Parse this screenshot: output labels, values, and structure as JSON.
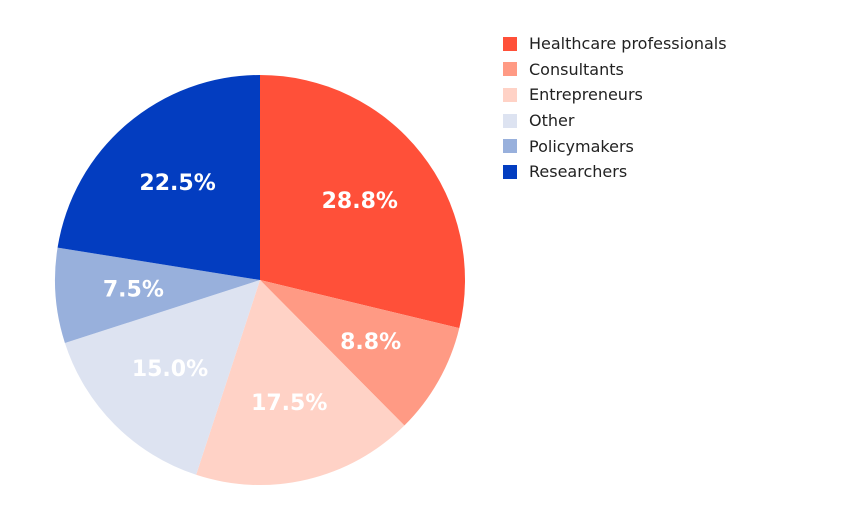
{
  "chart_data": {
    "type": "pie",
    "categories": [
      "Healthcare professionals",
      "Consultants",
      "Entrepreneurs",
      "Other",
      "Policymakers",
      "Researchers"
    ],
    "values": [
      28.8,
      8.8,
      17.5,
      15.0,
      7.5,
      22.5
    ],
    "labels": [
      "28.8%",
      "8.8%",
      "17.5%",
      "15.0%",
      "7.5%",
      "22.5%"
    ],
    "colors": [
      "#ff5039",
      "#ff9a84",
      "#ffd2c6",
      "#dde3f1",
      "#98b0dc",
      "#033dc0"
    ],
    "title": "",
    "legend_position": "top-right"
  }
}
